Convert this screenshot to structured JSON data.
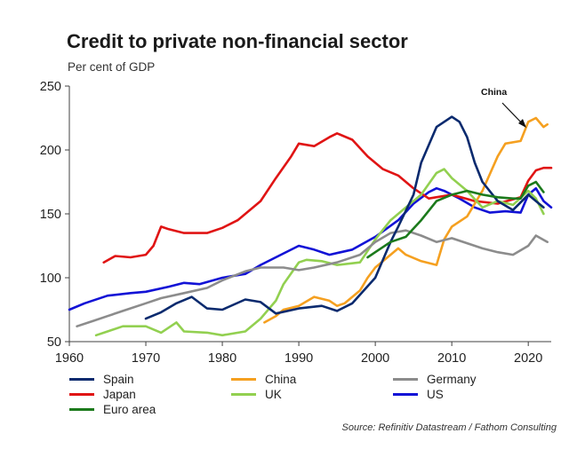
{
  "chart_data": {
    "type": "line",
    "title": "Credit to private non-financial sector",
    "ylabel": "Per cent of GDP",
    "xlabel": "",
    "xlim": [
      1960,
      2023
    ],
    "ylim": [
      50,
      250
    ],
    "xticks": [
      "1960",
      "1970",
      "1980",
      "1990",
      "2000",
      "2010",
      "2020"
    ],
    "yticks": [
      "250",
      "200",
      "150",
      "100",
      "50"
    ],
    "grid": false,
    "annotation": {
      "text": "China",
      "target": [
        2020.5,
        222
      ],
      "from": [
        2017.5,
        245
      ]
    },
    "source": "Source: Refinitiv Datastream / Fathom Consulting",
    "series": [
      {
        "name": "US",
        "color": "#1212d6",
        "x": [
          1960,
          1962,
          1965,
          1968,
          1970,
          1973,
          1975,
          1977,
          1980,
          1983,
          1985,
          1988,
          1990,
          1992,
          1994,
          1997,
          2000,
          2003,
          2005,
          2007,
          2008,
          2009,
          2011,
          2013,
          2015,
          2017,
          2019,
          2020,
          2021,
          2022,
          2023
        ],
        "y": [
          75,
          80,
          86,
          88,
          89,
          93,
          96,
          95,
          100,
          103,
          110,
          119,
          125,
          122,
          118,
          122,
          132,
          145,
          158,
          167,
          170,
          168,
          162,
          155,
          151,
          152,
          151,
          165,
          170,
          160,
          155
        ]
      },
      {
        "name": "Japan",
        "color": "#e01414",
        "x": [
          1964.5,
          1966,
          1968,
          1970,
          1971,
          1972,
          1973,
          1975,
          1978,
          1980,
          1982,
          1985,
          1987,
          1989,
          1990,
          1992,
          1994,
          1995,
          1997,
          1999,
          2001,
          2003,
          2005,
          2007,
          2010,
          2013,
          2016,
          2019,
          2020,
          2021,
          2022,
          2023
        ],
        "y": [
          112,
          117,
          116,
          118,
          125,
          140,
          138,
          135,
          135,
          139,
          145,
          160,
          178,
          195,
          205,
          203,
          210,
          213,
          208,
          195,
          185,
          180,
          170,
          162,
          165,
          160,
          158,
          163,
          176,
          184,
          186,
          186
        ]
      },
      {
        "name": "China",
        "color": "#f5a020",
        "x": [
          1985.5,
          1987,
          1988,
          1990,
          1992,
          1994,
          1995,
          1996,
          1998,
          1999,
          2000,
          2002,
          2003,
          2004,
          2006,
          2008,
          2009,
          2010,
          2012,
          2014,
          2016,
          2017,
          2019,
          2020,
          2021,
          2022,
          2022.5
        ],
        "y": [
          65,
          70,
          75,
          78,
          85,
          82,
          78,
          80,
          90,
          100,
          108,
          118,
          123,
          118,
          113,
          110,
          130,
          140,
          148,
          168,
          195,
          205,
          207,
          222,
          225,
          218,
          220
        ]
      },
      {
        "name": "UK",
        "color": "#92d050",
        "x": [
          1963.5,
          1965,
          1967,
          1970,
          1972,
          1974,
          1975,
          1978,
          1980,
          1983,
          1985,
          1987,
          1988,
          1990,
          1991,
          1993,
          1995,
          1998,
          2000,
          2002,
          2004,
          2006,
          2008,
          2009,
          2010,
          2012,
          2014,
          2016,
          2018,
          2020,
          2021,
          2022
        ],
        "y": [
          55,
          58,
          62,
          62,
          57,
          65,
          58,
          57,
          55,
          58,
          68,
          82,
          95,
          112,
          114,
          113,
          110,
          112,
          130,
          145,
          155,
          165,
          182,
          185,
          178,
          168,
          155,
          160,
          157,
          168,
          162,
          150
        ]
      },
      {
        "name": "Germany",
        "color": "#8c8c8c",
        "x": [
          1961,
          1963,
          1965,
          1967,
          1970,
          1972,
          1975,
          1978,
          1980,
          1983,
          1985,
          1988,
          1990,
          1992,
          1995,
          1998,
          2000,
          2002,
          2004,
          2006,
          2008,
          2010,
          2012,
          2014,
          2016,
          2018,
          2020,
          2021,
          2022.5
        ],
        "y": [
          62,
          66,
          70,
          74,
          80,
          84,
          88,
          92,
          98,
          105,
          108,
          108,
          106,
          108,
          112,
          118,
          128,
          135,
          137,
          133,
          128,
          131,
          127,
          123,
          120,
          118,
          125,
          133,
          128
        ]
      },
      {
        "name": "Spain",
        "color": "#0a2a6e",
        "x": [
          1970,
          1972,
          1974,
          1976,
          1978,
          1980,
          1983,
          1985,
          1987,
          1990,
          1993,
          1995,
          1997,
          2000,
          2002,
          2003,
          2005,
          2006,
          2008,
          2009,
          2010,
          2011,
          2012,
          2013,
          2014,
          2016,
          2018,
          2020,
          2021,
          2022
        ],
        "y": [
          68,
          73,
          80,
          85,
          76,
          75,
          83,
          81,
          72,
          76,
          78,
          74,
          80,
          100,
          128,
          140,
          165,
          190,
          218,
          222,
          226,
          222,
          210,
          190,
          175,
          160,
          153,
          165,
          160,
          155
        ]
      },
      {
        "name": "Euro area",
        "color": "#1c7a1c",
        "x": [
          1999,
          2000,
          2002,
          2004,
          2006,
          2008,
          2010,
          2012,
          2014,
          2016,
          2018,
          2019,
          2020,
          2021,
          2022
        ],
        "y": [
          116,
          120,
          128,
          132,
          145,
          160,
          165,
          168,
          165,
          163,
          162,
          162,
          172,
          175,
          167
        ]
      }
    ]
  },
  "legend": {
    "spain": "Spain",
    "china": "China",
    "germany": "Germany",
    "japan": "Japan",
    "uk": "UK",
    "us": "US",
    "euro": "Euro area"
  },
  "colors": {
    "spain": "#0a2a6e",
    "china": "#f5a020",
    "germany": "#8c8c8c",
    "japan": "#e01414",
    "uk": "#92d050",
    "us": "#1212d6",
    "euro": "#1c7a1c",
    "axis": "#404040"
  }
}
